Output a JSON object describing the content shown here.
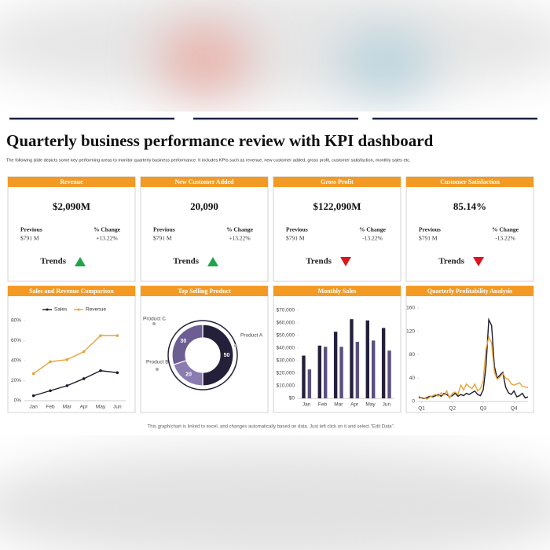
{
  "title": "Quarterly business performance review with KPI dashboard",
  "subtitle": "The following slide depicts some key performing areas to monitor quarterly business performance. It includes KPIs such as revenue, new customer added, gross profit, customer satisfaction, monthly sales etc.",
  "footer": "This graph/chart is linked to excel, and changes automatically based on data. Just left click on it and select \"Edit Data\".",
  "kpis": [
    {
      "title": "Revenue",
      "value": "$2,090M",
      "previous_label": "Previous",
      "previous": "$791 M",
      "change_label": "% Change",
      "change": "+13.22%",
      "trend_label": "Trends",
      "trend": "up"
    },
    {
      "title": "New Customer Added",
      "value": "20,090",
      "previous_label": "Previous",
      "previous": "$791 M",
      "change_label": "% Change",
      "change": "+13.22%",
      "trend_label": "Trends",
      "trend": "up"
    },
    {
      "title": "Gross Profit",
      "value": "$122,090M",
      "previous_label": "Previous",
      "previous": "$791 M",
      "change_label": "% Change",
      "change": "-13.22%",
      "trend_label": "Trends",
      "trend": "down"
    },
    {
      "title": "Customer Satisfaction",
      "value": "85.14%",
      "previous_label": "Previous",
      "previous": "$791 M",
      "change_label": "% Change",
      "change": "-13.22%",
      "trend_label": "Trends",
      "trend": "down"
    }
  ],
  "chart_data": [
    {
      "type": "line",
      "title": "Sales and Revenue Comparison",
      "markers": true,
      "legend": "top",
      "categories": [
        "Jan",
        "Feb",
        "Mar",
        "Apr",
        "May",
        "Jun"
      ],
      "series": [
        {
          "name": "Sales",
          "color": "#1c1c2e",
          "values": [
            5,
            10,
            15,
            22,
            30,
            28
          ]
        },
        {
          "name": "Revenue",
          "color": "#e8a33a",
          "values": [
            27,
            39,
            41,
            49,
            65,
            65
          ]
        }
      ],
      "ylim": [
        0,
        80
      ],
      "yticks": [
        {
          "value": 0,
          "label": "0%"
        },
        {
          "value": 20,
          "label": "20%"
        },
        {
          "value": 40,
          "label": "40%"
        },
        {
          "value": 60,
          "label": "60%"
        },
        {
          "value": 80,
          "label": "80%"
        }
      ]
    },
    {
      "type": "donut",
      "title": "Top Selling Product",
      "categories": [
        "Product A",
        "Product B",
        "Product C"
      ],
      "values": [
        50,
        20,
        30
      ],
      "colors": [
        "#25203a",
        "#8a7bb0",
        "#6c5d92"
      ]
    },
    {
      "type": "bar",
      "title": "Monthly Sales",
      "categories": [
        "Jan",
        "Feb",
        "Mar",
        "Apr",
        "May",
        "Jun"
      ],
      "series": [
        {
          "color": "#25203a",
          "values": [
            34000,
            42000,
            53000,
            63000,
            62000,
            56000
          ]
        },
        {
          "color": "#5b4f7e",
          "values": [
            23000,
            41000,
            41000,
            45000,
            46000,
            38000
          ]
        }
      ],
      "ylim": [
        0,
        70000
      ],
      "yticks": [
        {
          "value": 0,
          "label": "$0"
        },
        {
          "value": 10000,
          "label": "$10,000"
        },
        {
          "value": 20000,
          "label": "$20,000"
        },
        {
          "value": 30000,
          "label": "$30,000"
        },
        {
          "value": 40000,
          "label": "$40,000"
        },
        {
          "value": 50000,
          "label": "$50,000"
        },
        {
          "value": 60000,
          "label": "$60,000"
        },
        {
          "value": 70000,
          "label": "$70,000"
        }
      ]
    },
    {
      "type": "line",
      "title": "Quarterly Profitability Analysis",
      "markers": false,
      "x": [
        0,
        1,
        2,
        3,
        4,
        5,
        6,
        7,
        8,
        9,
        10,
        11,
        12,
        13,
        14,
        15,
        16,
        17,
        18,
        19,
        20,
        21,
        22,
        23,
        24,
        25,
        26,
        27,
        28,
        29,
        30,
        31,
        32,
        33,
        34,
        35,
        36,
        37,
        38,
        39
      ],
      "series": [
        {
          "color": "#1c1c2e",
          "values": [
            8,
            6,
            5,
            7,
            9,
            8,
            10,
            12,
            9,
            14,
            12,
            8,
            10,
            14,
            9,
            12,
            10,
            14,
            12,
            15,
            18,
            12,
            10,
            20,
            60,
            140,
            130,
            60,
            40,
            45,
            50,
            25,
            15,
            12,
            18,
            8,
            10,
            14,
            6,
            8
          ]
        },
        {
          "color": "#e8a33a",
          "values": [
            5,
            7,
            6,
            4,
            8,
            10,
            12,
            9,
            15,
            11,
            18,
            6,
            14,
            16,
            12,
            28,
            20,
            30,
            25,
            22,
            30,
            18,
            22,
            35,
            90,
            110,
            100,
            50,
            38,
            42,
            48,
            40,
            38,
            30,
            28,
            30,
            32,
            26,
            25,
            24
          ]
        }
      ],
      "xlim": [
        0,
        39
      ],
      "xticks": [
        {
          "value": 1,
          "label": "Q1"
        },
        {
          "value": 12,
          "label": "Q2"
        },
        {
          "value": 23,
          "label": "Q3"
        },
        {
          "value": 34,
          "label": "Q4"
        }
      ],
      "ylim": [
        0,
        160
      ],
      "yticks": [
        0,
        40,
        80,
        120,
        160
      ]
    }
  ]
}
